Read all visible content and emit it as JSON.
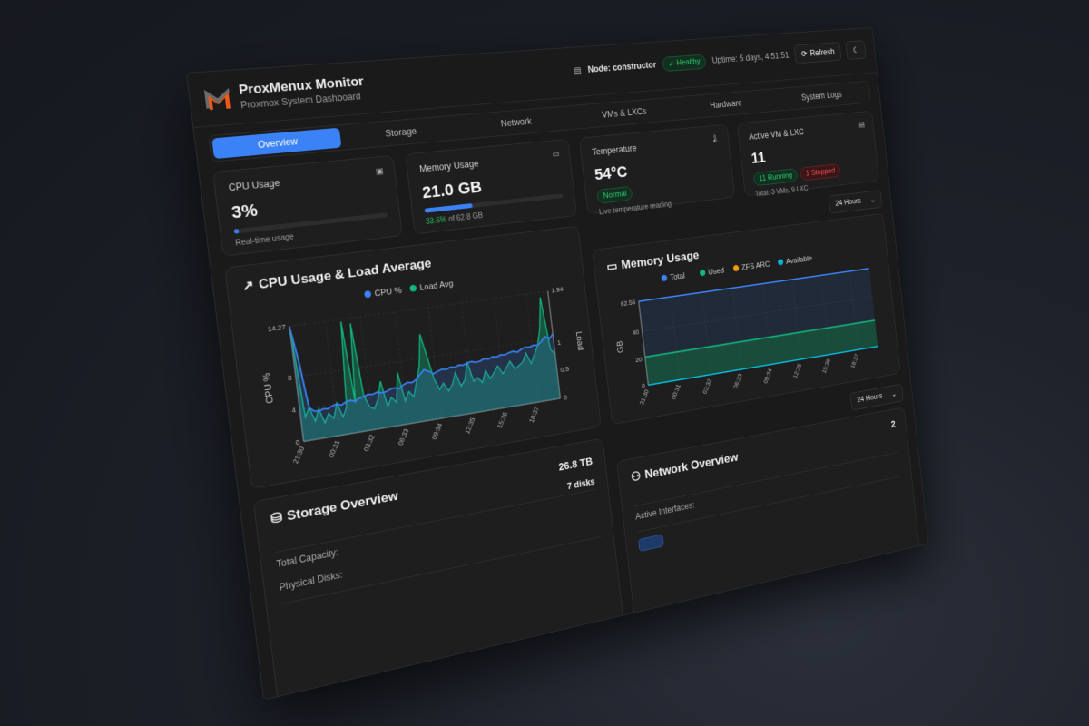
{
  "header": {
    "title": "ProxMenux Monitor",
    "subtitle": "Proxmox System Dashboard",
    "node": "Node: constructor",
    "health": "Healthy",
    "uptime": "Uptime: 5 days, 4:51:51",
    "refresh": "Refresh",
    "logo_colors": [
      "#6b6b6b",
      "#f05a1a"
    ]
  },
  "tabs": [
    {
      "label": "Overview",
      "active": true
    },
    {
      "label": "Storage"
    },
    {
      "label": "Network"
    },
    {
      "label": "VMs & LXCs"
    },
    {
      "label": "Hardware"
    },
    {
      "label": "System Logs"
    }
  ],
  "stats": {
    "cpu": {
      "label": "CPU Usage",
      "value": "3%",
      "percent": 3,
      "note": "Real-time usage"
    },
    "memory": {
      "label": "Memory Usage",
      "value": "21.0 GB",
      "percent": 33.6,
      "pct_text": "33.6%",
      "of_text": "of 62.8 GB"
    },
    "temperature": {
      "label": "Temperature",
      "value": "54°C",
      "status": "Normal",
      "note": "Live temperature reading"
    },
    "vms": {
      "label": "Active VM & LXC",
      "value": "11",
      "running": "11 Running",
      "stopped": "1 Stopped",
      "total": "Total: 3 VMs, 9 LXC"
    }
  },
  "range_select": "24 Hours",
  "colors": {
    "accent": "#3b82f6",
    "green": "#10b981",
    "orange": "#f59e0b",
    "cyan": "#06b6d4"
  },
  "chart_data": [
    {
      "type": "line",
      "title": "CPU Usage & Load Average",
      "x_ticks": [
        "21:30",
        "00:31",
        "03:32",
        "06:33",
        "09:34",
        "12:35",
        "15:36",
        "18:37"
      ],
      "ylabel": "CPU %",
      "ylim": [
        0,
        14.27
      ],
      "y_ticks": [
        0,
        4,
        8,
        14.27
      ],
      "y2label": "Load",
      "y2lim": [
        0,
        1.94
      ],
      "y2_ticks": [
        0,
        0.5,
        1,
        1.94
      ],
      "grid": true,
      "legend": "top-center",
      "series": [
        {
          "name": "CPU %",
          "axis": "left",
          "color": "#3b82f6",
          "values": [
            14,
            10,
            4,
            3.5,
            3.4,
            3.6,
            3.5,
            3.8,
            3.9,
            3.7,
            4,
            4.1,
            3.9,
            4.2,
            4.3,
            4.5,
            4.4,
            4.6,
            4.4,
            4.5,
            4.7,
            4.8,
            4.6,
            5,
            5.2,
            5.1,
            5.4,
            6,
            6.5,
            6.2,
            5.8,
            6,
            6.2,
            6.1,
            6.3,
            6.2,
            6.4,
            6.3,
            6.5,
            6.6,
            6.4,
            6.5,
            6.7,
            6.6,
            6.8,
            6.7,
            6.9,
            6.8,
            7,
            7.1,
            6.9,
            7.2,
            7.4,
            7.3,
            7.5,
            7.4,
            7.8,
            8.4,
            8,
            8.6
          ]
        },
        {
          "name": "Load Avg",
          "axis": "right",
          "color": "#10b981",
          "values": [
            1.9,
            0.4,
            0.55,
            0.3,
            0.5,
            0.25,
            0.4,
            0.3,
            0.55,
            0.3,
            0.45,
            1.9,
            0.5,
            1.85,
            0.6,
            0.4,
            0.35,
            0.5,
            0.8,
            0.35,
            0.5,
            0.4,
            0.9,
            0.4,
            0.55,
            0.45,
            0.7,
            0.95,
            1.5,
            1.1,
            0.7,
            0.5,
            0.6,
            0.45,
            0.55,
            0.75,
            0.5,
            0.6,
            0.9,
            0.55,
            0.6,
            0.5,
            0.7,
            0.55,
            0.65,
            0.75,
            0.6,
            0.7,
            0.8,
            0.65,
            0.7,
            0.75,
            0.9,
            0.7,
            0.85,
            1.0,
            1.3,
            1.85,
            0.9,
            0.8
          ]
        }
      ]
    },
    {
      "type": "area",
      "title": "Memory Usage",
      "x_ticks": [
        "21:30",
        "00:31",
        "03:32",
        "06:33",
        "09:34",
        "12:35",
        "15:36",
        "18:37"
      ],
      "ylabel": "GB",
      "ylim": [
        0,
        62.56
      ],
      "y_ticks": [
        0,
        20,
        40,
        62.56
      ],
      "grid": true,
      "legend": "top-center",
      "series": [
        {
          "name": "Total",
          "color": "#3b82f6",
          "value": 62.56
        },
        {
          "name": "Used",
          "color": "#10b981",
          "value": 21.0
        },
        {
          "name": "ZFS ARC",
          "color": "#f59e0b",
          "value": 0
        },
        {
          "name": "Available",
          "color": "#06b6d4",
          "value": 0
        }
      ]
    }
  ],
  "storage": {
    "title": "Storage Overview",
    "rows": [
      {
        "label": "Total Capacity:",
        "value": "26.8 TB"
      },
      {
        "label": "Physical Disks:",
        "value": "7 disks"
      }
    ]
  },
  "network": {
    "title": "Network Overview",
    "rows": [
      {
        "label": "Active Interfaces:",
        "value": "2"
      }
    ]
  }
}
